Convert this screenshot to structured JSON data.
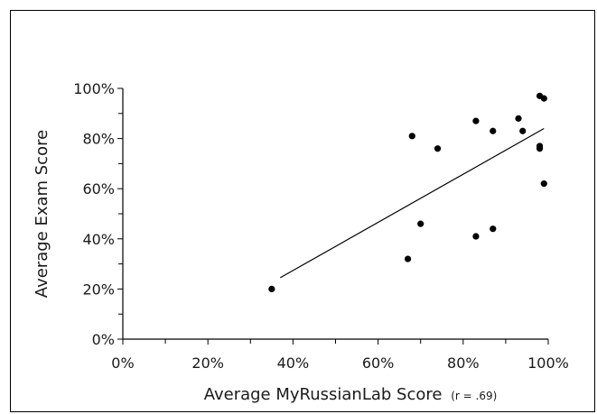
{
  "chart_data": {
    "type": "scatter",
    "title": "",
    "xlabel": "Average MyRussianLab Score",
    "xlabel_note": "(r = .69)",
    "ylabel": "Average Exam Score",
    "xlim": [
      0,
      100
    ],
    "ylim": [
      0,
      100
    ],
    "xticks": [
      0,
      20,
      40,
      60,
      80,
      100
    ],
    "yticks": [
      0,
      20,
      40,
      60,
      80,
      100
    ],
    "xtick_labels": [
      "0%",
      "20%",
      "40%",
      "60%",
      "80%",
      "100%"
    ],
    "ytick_labels": [
      "0%",
      "20%",
      "40%",
      "60%",
      "80%",
      "100%"
    ],
    "grid": false,
    "points": [
      {
        "x": 35,
        "y": 20
      },
      {
        "x": 67,
        "y": 32
      },
      {
        "x": 68,
        "y": 81
      },
      {
        "x": 70,
        "y": 46
      },
      {
        "x": 74,
        "y": 76
      },
      {
        "x": 83,
        "y": 87
      },
      {
        "x": 83,
        "y": 41
      },
      {
        "x": 87,
        "y": 83
      },
      {
        "x": 87,
        "y": 44
      },
      {
        "x": 93,
        "y": 88
      },
      {
        "x": 94,
        "y": 83
      },
      {
        "x": 98,
        "y": 97
      },
      {
        "x": 98,
        "y": 77
      },
      {
        "x": 98,
        "y": 76
      },
      {
        "x": 99,
        "y": 96
      },
      {
        "x": 99,
        "y": 62
      }
    ],
    "trendline": {
      "x": [
        37,
        99
      ],
      "y": [
        24.5,
        84
      ]
    },
    "colors": {
      "points": "#000000",
      "line": "#000000",
      "text": "#1a1a1a"
    }
  }
}
